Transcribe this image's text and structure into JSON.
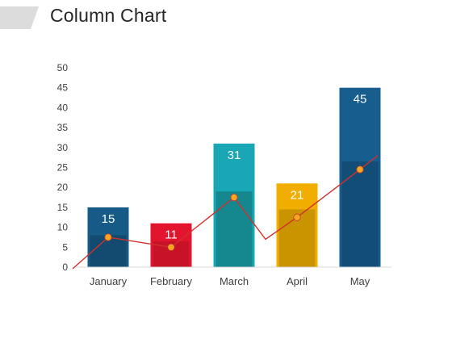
{
  "slide": {
    "title": "Column Chart"
  },
  "chart_data": {
    "type": "bar",
    "title": "",
    "xlabel": "",
    "ylabel": "",
    "ylim": [
      0,
      50
    ],
    "yticks": [
      0,
      5,
      10,
      15,
      20,
      25,
      30,
      35,
      40,
      45,
      50
    ],
    "grid": false,
    "legend": "none",
    "categories": [
      "January",
      "February",
      "March",
      "April",
      "May"
    ],
    "series": [
      {
        "type": "bar",
        "values": [
          15,
          11,
          31,
          21,
          45
        ],
        "colors": [
          "#165a87",
          "#e3152e",
          "#1aa7b5",
          "#f2ae00",
          "#175d8d"
        ],
        "data_labels": true
      },
      {
        "type": "bar",
        "values": [
          8,
          6.5,
          19,
          14.5,
          26.5
        ],
        "colors": [
          "#124a70",
          "#c81228",
          "#14878f",
          "#c99400",
          "#114d76"
        ],
        "data_labels": false
      },
      {
        "type": "line",
        "values": [
          7.5,
          5,
          17.5,
          12.5,
          24.5
        ],
        "color": "#d0312d",
        "marker_color": "#f5a623"
      }
    ],
    "trend_line": {
      "color": "#d0312d",
      "extends_beyond_points": true
    }
  }
}
